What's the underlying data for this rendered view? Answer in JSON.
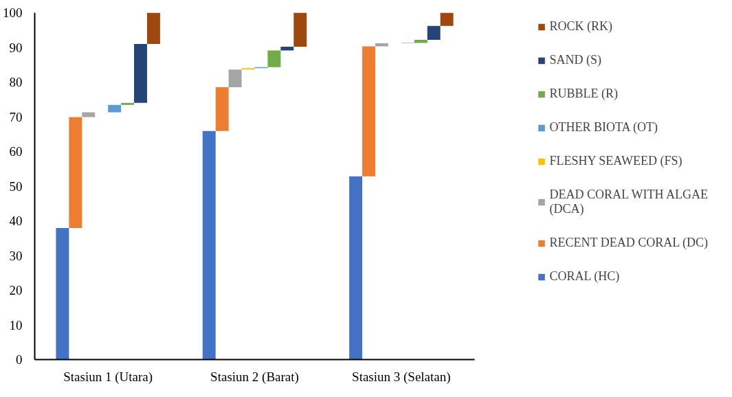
{
  "chart_data": {
    "type": "bar",
    "categories": [
      "Stasiun 1 (Utara)",
      "Stasiun 2 (Barat)",
      "Stasiun 3 (Selatan)"
    ],
    "series": [
      {
        "name": "CORAL (HC)",
        "color": "#4472c4",
        "values": [
          37.9,
          65.9,
          52.8
        ],
        "base": [
          0,
          0,
          0
        ]
      },
      {
        "name": "RECENT DEAD CORAL (DC)",
        "color": "#ed7d31",
        "values": [
          32.0,
          12.6,
          37.5
        ],
        "base": [
          37.9,
          65.9,
          52.8
        ]
      },
      {
        "name": "DEAD CORAL WITH ALGAE (DCA)",
        "color": "#a5a5a5",
        "values": [
          1.4,
          5.1,
          0.9
        ],
        "base": [
          69.9,
          78.5,
          90.3
        ]
      },
      {
        "name": "FLESHY SEAWEED (FS)",
        "color": "#ffc000",
        "values": [
          null,
          0.4,
          null
        ],
        "base": [
          null,
          83.6,
          null
        ]
      },
      {
        "name": "OTHER BIOTA (OT)",
        "color": "#5b9bd5",
        "values": [
          2.1,
          0.3,
          0.1
        ],
        "base": [
          71.3,
          84.0,
          91.2
        ]
      },
      {
        "name": "RUBBLE (R)",
        "color": "#70ad47",
        "values": [
          0.6,
          4.8,
          0.9
        ],
        "base": [
          73.4,
          84.3,
          91.3
        ]
      },
      {
        "name": "SAND (S)",
        "color": "#264478",
        "values": [
          17.0,
          1.1,
          4.0
        ],
        "base": [
          74.0,
          89.1,
          92.2
        ]
      },
      {
        "name": "ROCK (RK)",
        "color": "#9e480e",
        "values": [
          9.0,
          9.8,
          3.8
        ],
        "base": [
          91.0,
          90.2,
          96.2
        ]
      }
    ],
    "ylim": [
      0,
      100
    ],
    "yticks": [
      0,
      10,
      20,
      30,
      40,
      50,
      60,
      70,
      80,
      90,
      100
    ],
    "grid": false,
    "legend": "right"
  }
}
